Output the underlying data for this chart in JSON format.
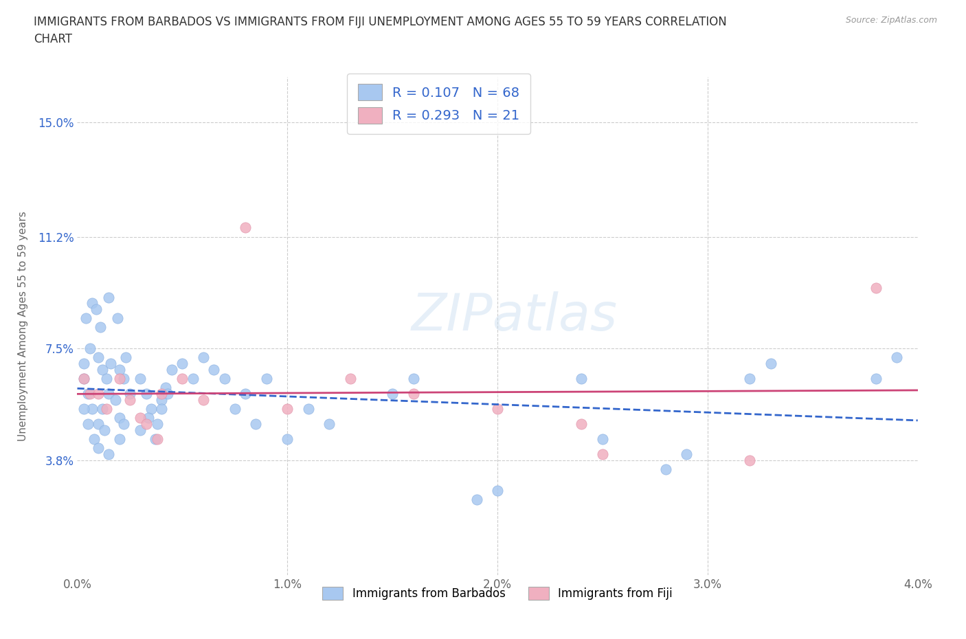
{
  "title": "IMMIGRANTS FROM BARBADOS VS IMMIGRANTS FROM FIJI UNEMPLOYMENT AMONG AGES 55 TO 59 YEARS CORRELATION\nCHART",
  "source": "Source: ZipAtlas.com",
  "ylabel": "Unemployment Among Ages 55 to 59 years",
  "xlim": [
    0.0,
    0.04
  ],
  "ylim": [
    0.0,
    0.165
  ],
  "xticks": [
    0.0,
    0.01,
    0.02,
    0.03,
    0.04
  ],
  "xtick_labels": [
    "0.0%",
    "1.0%",
    "2.0%",
    "3.0%",
    "4.0%"
  ],
  "ytick_positions": [
    0.038,
    0.075,
    0.112,
    0.15
  ],
  "ytick_labels": [
    "3.8%",
    "7.5%",
    "11.2%",
    "15.0%"
  ],
  "barbados_color": "#a8c8f0",
  "fiji_color": "#f0b0c0",
  "barbados_line_color": "#3366cc",
  "fiji_line_color": "#cc4477",
  "R_barbados": 0.107,
  "N_barbados": 68,
  "R_fiji": 0.293,
  "N_fiji": 21,
  "barbados_x": [
    0.0003,
    0.0005,
    0.0007,
    0.001,
    0.0012,
    0.0015,
    0.0018,
    0.002,
    0.0022,
    0.0003,
    0.0005,
    0.0008,
    0.001,
    0.0013,
    0.0015,
    0.002,
    0.0022,
    0.0025,
    0.0003,
    0.0006,
    0.001,
    0.0012,
    0.0014,
    0.0016,
    0.002,
    0.0023,
    0.0004,
    0.0007,
    0.0009,
    0.0011,
    0.0015,
    0.0019,
    0.003,
    0.0033,
    0.0035,
    0.0038,
    0.004,
    0.0042,
    0.0045,
    0.003,
    0.0034,
    0.0037,
    0.004,
    0.0043,
    0.005,
    0.0055,
    0.006,
    0.0065,
    0.007,
    0.0075,
    0.008,
    0.0085,
    0.009,
    0.01,
    0.011,
    0.012,
    0.015,
    0.016,
    0.019,
    0.02,
    0.024,
    0.025,
    0.028,
    0.029,
    0.032,
    0.033,
    0.038,
    0.039
  ],
  "barbados_y": [
    0.065,
    0.06,
    0.055,
    0.05,
    0.055,
    0.06,
    0.058,
    0.052,
    0.065,
    0.055,
    0.05,
    0.045,
    0.042,
    0.048,
    0.04,
    0.045,
    0.05,
    0.06,
    0.07,
    0.075,
    0.072,
    0.068,
    0.065,
    0.07,
    0.068,
    0.072,
    0.085,
    0.09,
    0.088,
    0.082,
    0.092,
    0.085,
    0.065,
    0.06,
    0.055,
    0.05,
    0.058,
    0.062,
    0.068,
    0.048,
    0.052,
    0.045,
    0.055,
    0.06,
    0.07,
    0.065,
    0.072,
    0.068,
    0.065,
    0.055,
    0.06,
    0.05,
    0.065,
    0.045,
    0.055,
    0.05,
    0.06,
    0.065,
    0.025,
    0.028,
    0.065,
    0.045,
    0.035,
    0.04,
    0.065,
    0.07,
    0.065,
    0.072
  ],
  "fiji_x": [
    0.0003,
    0.0006,
    0.001,
    0.0014,
    0.002,
    0.0025,
    0.003,
    0.0033,
    0.0038,
    0.004,
    0.005,
    0.006,
    0.008,
    0.01,
    0.013,
    0.016,
    0.02,
    0.024,
    0.025,
    0.032,
    0.038
  ],
  "fiji_y": [
    0.065,
    0.06,
    0.06,
    0.055,
    0.065,
    0.058,
    0.052,
    0.05,
    0.045,
    0.06,
    0.065,
    0.058,
    0.115,
    0.055,
    0.065,
    0.06,
    0.055,
    0.05,
    0.04,
    0.038,
    0.095
  ],
  "watermark": "ZIPatlas",
  "legend_label_barbados": "Immigrants from Barbados",
  "legend_label_fiji": "Immigrants from Fiji"
}
